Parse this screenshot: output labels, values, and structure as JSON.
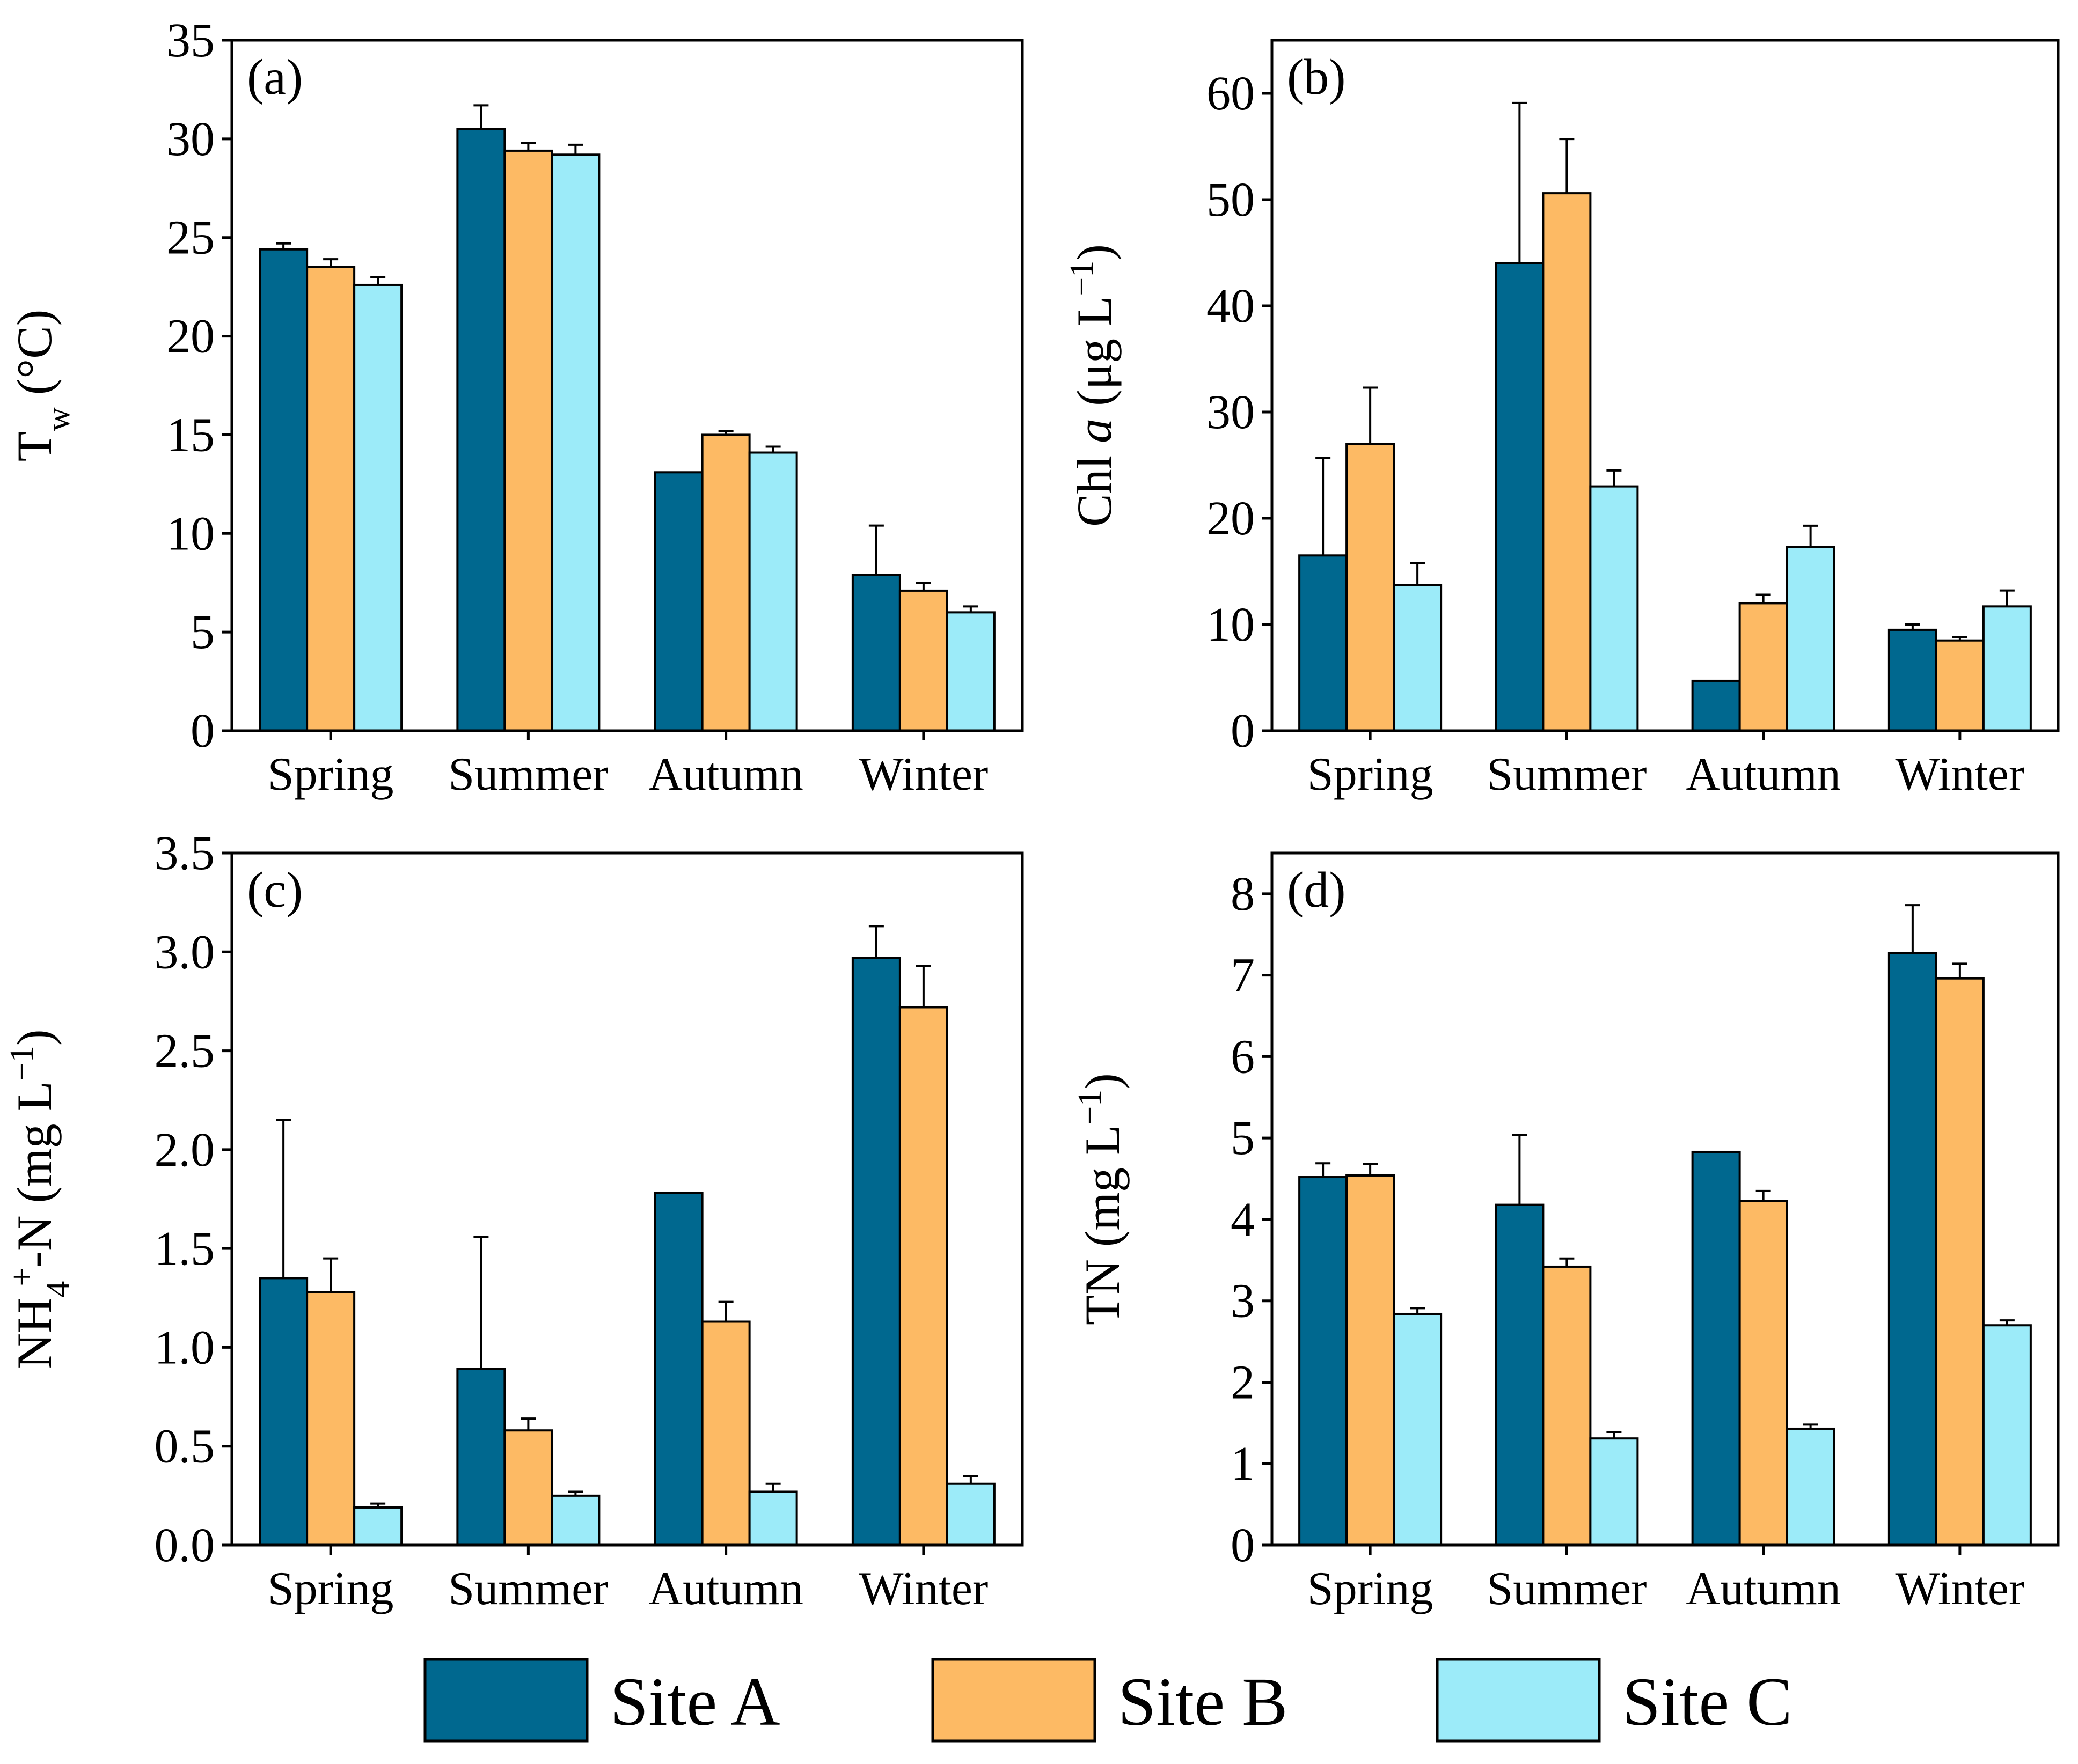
{
  "legend": [
    {
      "label": "Site A",
      "color": "#00688F"
    },
    {
      "label": "Site B",
      "color": "#FDBA64"
    },
    {
      "label": "Site C",
      "color": "#9CEBF9"
    }
  ],
  "chart_data": [
    {
      "type": "bar",
      "panel": "(a)",
      "ylabel_main": "T",
      "ylabel_sub": "w",
      "ylabel_rest": " (°C)",
      "categories": [
        "Spring",
        "Summer",
        "Autumn",
        "Winter"
      ],
      "ylim": [
        0,
        35
      ],
      "yticks": [
        "0",
        "5",
        "10",
        "15",
        "20",
        "25",
        "30",
        "35"
      ],
      "ytick_values": [
        0,
        5,
        10,
        15,
        20,
        25,
        30,
        35
      ],
      "series": [
        {
          "name": "Site A",
          "values": [
            24.4,
            30.5,
            13.1,
            7.9
          ],
          "errors": [
            0.3,
            1.2,
            0,
            2.5
          ]
        },
        {
          "name": "Site B",
          "values": [
            23.5,
            29.4,
            15.0,
            7.1
          ],
          "errors": [
            0.4,
            0.4,
            0.2,
            0.4
          ]
        },
        {
          "name": "Site C",
          "values": [
            22.6,
            29.2,
            14.1,
            6.0
          ],
          "errors": [
            0.4,
            0.5,
            0.3,
            0.3
          ]
        }
      ]
    },
    {
      "type": "bar",
      "panel": "(b)",
      "ylabel_main": "Chl ",
      "ylabel_italic": "a",
      "ylabel_rest": " (μg L",
      "ylabel_sup": "−1",
      "ylabel_end": ")",
      "categories": [
        "Spring",
        "Summer",
        "Autumn",
        "Winter"
      ],
      "ylim": [
        0,
        65
      ],
      "yticks": [
        "0",
        "10",
        "20",
        "30",
        "40",
        "50",
        "60"
      ],
      "ytick_values": [
        0,
        10,
        20,
        30,
        40,
        50,
        60
      ],
      "series": [
        {
          "name": "Site A",
          "values": [
            16.5,
            44.0,
            4.7,
            9.5
          ],
          "errors": [
            9.2,
            15.1,
            0,
            0.5
          ]
        },
        {
          "name": "Site B",
          "values": [
            27.0,
            50.6,
            12.0,
            8.5
          ],
          "errors": [
            5.3,
            5.1,
            0.8,
            0.3
          ]
        },
        {
          "name": "Site C",
          "values": [
            13.7,
            23.0,
            17.3,
            11.7
          ],
          "errors": [
            2.1,
            1.5,
            2.0,
            1.5
          ]
        }
      ]
    },
    {
      "type": "bar",
      "panel": "(c)",
      "ylabel_main": "NH",
      "ylabel_sub": "4",
      "ylabel_sup": "+",
      "ylabel_rest": "-N (mg L",
      "ylabel_sup2": "−1",
      "ylabel_end": ")",
      "categories": [
        "Spring",
        "Summer",
        "Autumn",
        "Winter"
      ],
      "ylim": [
        0,
        3.5
      ],
      "yticks": [
        "0.0",
        "0.5",
        "1.0",
        "1.5",
        "2.0",
        "2.5",
        "3.0",
        "3.5"
      ],
      "ytick_values": [
        0,
        0.5,
        1.0,
        1.5,
        2.0,
        2.5,
        3.0,
        3.5
      ],
      "series": [
        {
          "name": "Site A",
          "values": [
            1.35,
            0.89,
            1.78,
            2.97
          ],
          "errors": [
            0.8,
            0.67,
            0,
            0.16
          ]
        },
        {
          "name": "Site B",
          "values": [
            1.28,
            0.58,
            1.13,
            2.72
          ],
          "errors": [
            0.17,
            0.06,
            0.1,
            0.21
          ]
        },
        {
          "name": "Site C",
          "values": [
            0.19,
            0.25,
            0.27,
            0.31
          ],
          "errors": [
            0.02,
            0.02,
            0.04,
            0.04
          ]
        }
      ]
    },
    {
      "type": "bar",
      "panel": "(d)",
      "ylabel_main": "TN (mg L",
      "ylabel_sup": "−1",
      "ylabel_end": ")",
      "categories": [
        "Spring",
        "Summer",
        "Autumn",
        "Winter"
      ],
      "ylim": [
        0,
        8.5
      ],
      "yticks": [
        "0",
        "1",
        "2",
        "3",
        "4",
        "5",
        "6",
        "7",
        "8"
      ],
      "ytick_values": [
        0,
        1,
        2,
        3,
        4,
        5,
        6,
        7,
        8
      ],
      "series": [
        {
          "name": "Site A",
          "values": [
            4.52,
            4.18,
            4.83,
            7.27
          ],
          "errors": [
            0.17,
            0.86,
            0,
            0.59
          ]
        },
        {
          "name": "Site B",
          "values": [
            4.54,
            3.42,
            4.23,
            6.96
          ],
          "errors": [
            0.14,
            0.1,
            0.12,
            0.18
          ]
        },
        {
          "name": "Site C",
          "values": [
            2.84,
            1.31,
            1.43,
            2.7
          ],
          "errors": [
            0.07,
            0.08,
            0.05,
            0.06
          ]
        }
      ]
    }
  ]
}
